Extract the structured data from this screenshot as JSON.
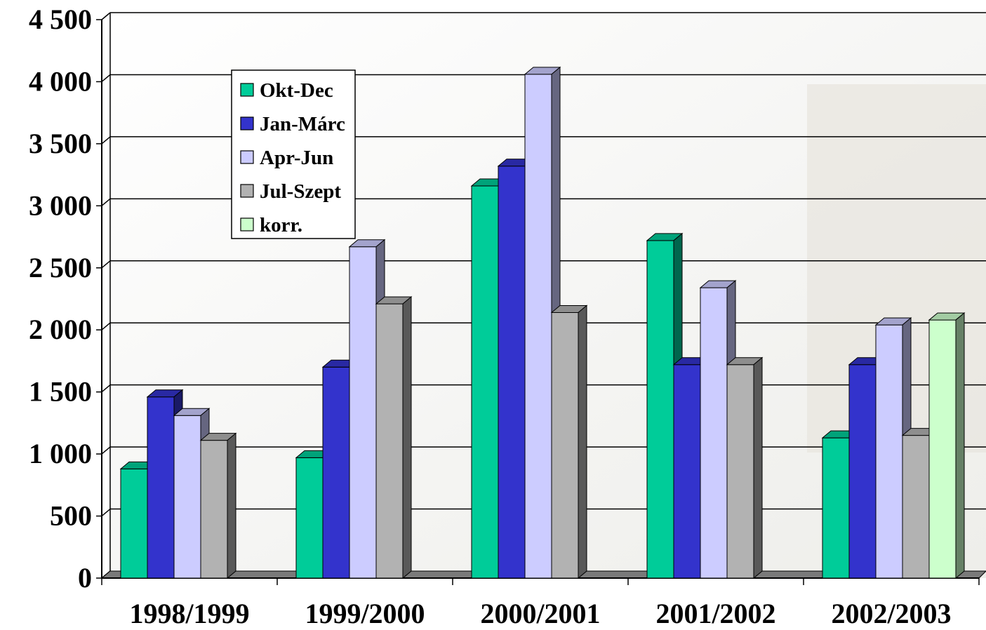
{
  "chart_data": {
    "type": "bar",
    "title": "",
    "xlabel": "",
    "ylabel": "",
    "ylim": [
      0,
      4500
    ],
    "ytick_labels": [
      "0",
      "500",
      "1 000",
      "1 500",
      "2 000",
      "2 500",
      "3 000",
      "3 500",
      "4 000",
      "4 500"
    ],
    "grid": true,
    "legend_position": "top-left",
    "categories": [
      "1998/1999",
      "1999/2000",
      "2000/2001",
      "2001/2002",
      "2002/2003"
    ],
    "series": [
      {
        "name": "Okt-Dec",
        "color": "#00cc99",
        "values": [
          880,
          970,
          3160,
          2720,
          1130
        ]
      },
      {
        "name": "Jan-Márc",
        "color": "#3333cc",
        "values": [
          1460,
          1700,
          3320,
          1720,
          1720
        ]
      },
      {
        "name": "Apr-Jun",
        "color": "#ccccff",
        "values": [
          1310,
          2670,
          4060,
          2340,
          2040
        ]
      },
      {
        "name": "Jul-Szept",
        "color": "#b2b2b2",
        "values": [
          1110,
          2210,
          2140,
          1720,
          1150
        ]
      },
      {
        "name": "korr.",
        "color": "#ccffcc",
        "values": [
          null,
          null,
          null,
          null,
          2080
        ]
      }
    ]
  }
}
